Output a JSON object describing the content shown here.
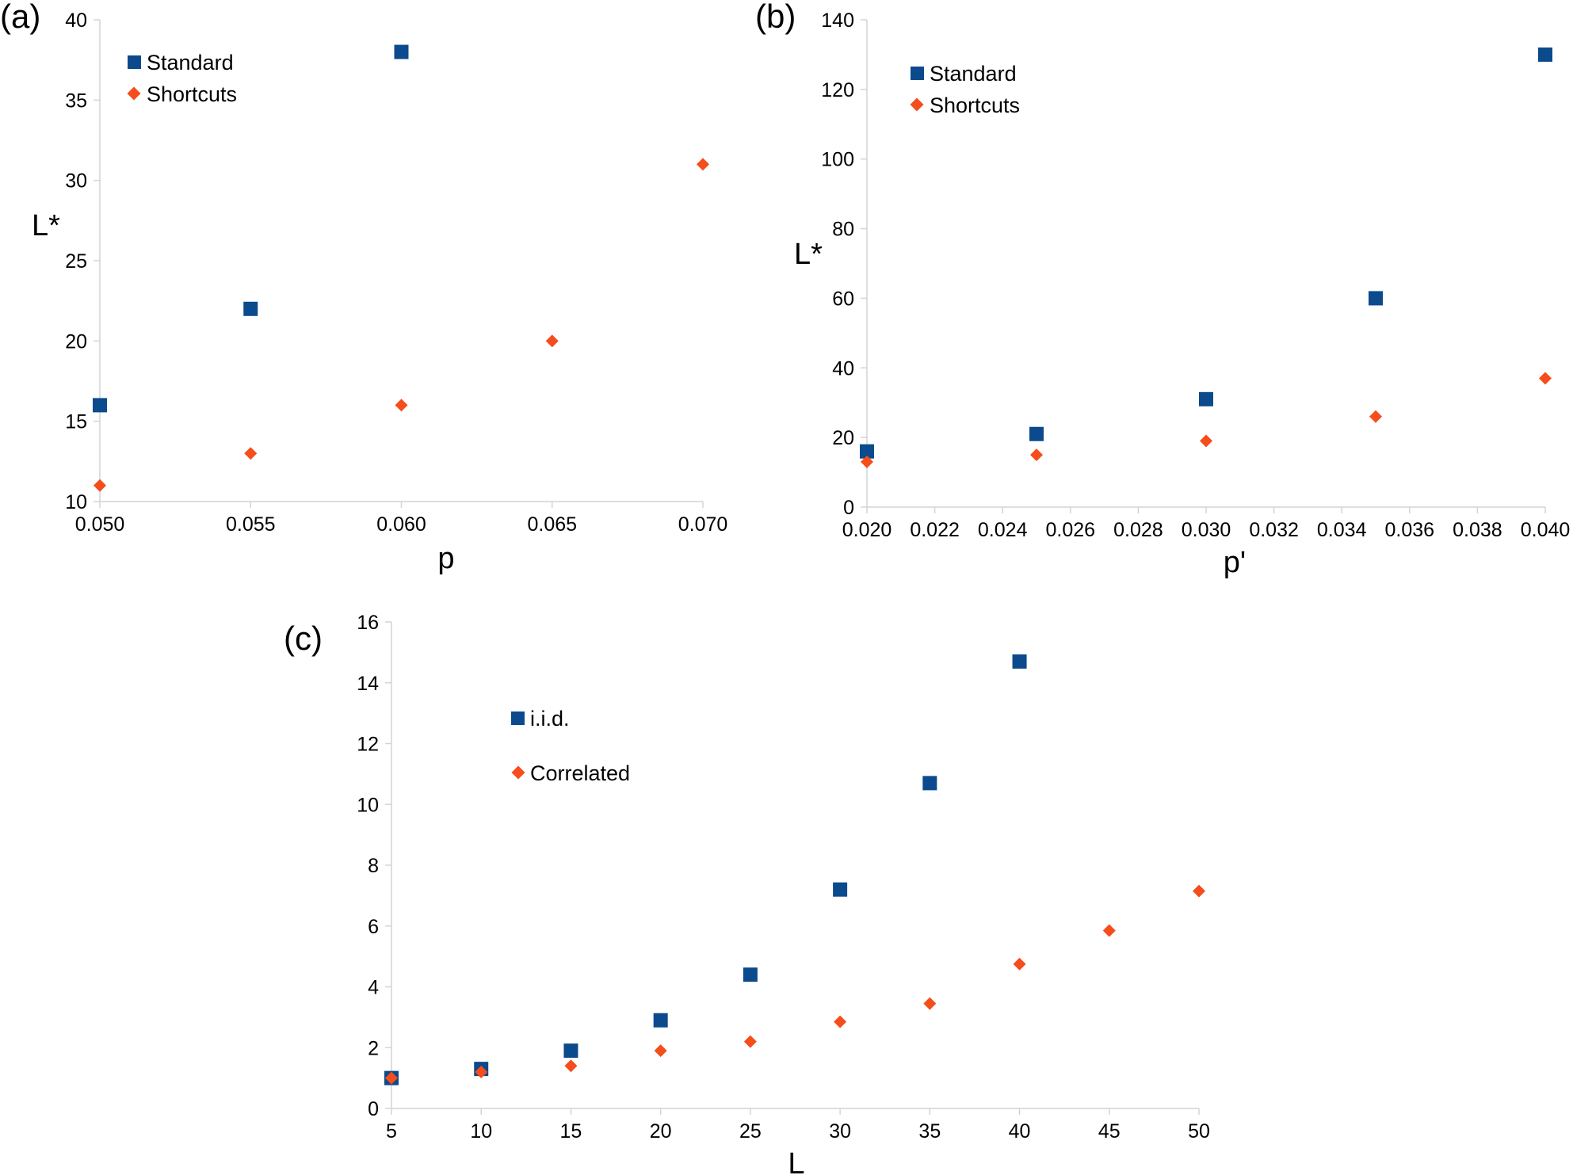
{
  "colors": {
    "standard": "#0b4a8c",
    "shortcuts": "#f54d1b",
    "axis": "#d4d4d4"
  },
  "chart_data": [
    {
      "panel_label": "(a)",
      "type": "scatter",
      "xlabel": "p",
      "ylabel": "L*",
      "xlim": [
        0.05,
        0.07
      ],
      "ylim": [
        10,
        40
      ],
      "x_ticks": [
        "0.050",
        "0.055",
        "0.060",
        "0.065",
        "0.070"
      ],
      "y_ticks": [
        "10",
        "15",
        "20",
        "25",
        "30",
        "35",
        "40"
      ],
      "legend_position": "top-left",
      "series": [
        {
          "name": "Standard",
          "marker": "square",
          "x": [
            0.05,
            0.055,
            0.06
          ],
          "y": [
            16,
            22,
            38
          ]
        },
        {
          "name": "Shortcuts",
          "marker": "diamond",
          "x": [
            0.05,
            0.055,
            0.06,
            0.065,
            0.07
          ],
          "y": [
            11,
            13,
            16,
            20,
            31
          ]
        }
      ]
    },
    {
      "panel_label": "(b)",
      "type": "scatter",
      "xlabel": "p'",
      "ylabel": "L*",
      "xlim": [
        0.02,
        0.04
      ],
      "ylim": [
        0,
        140
      ],
      "x_ticks": [
        "0.020",
        "0.022",
        "0.024",
        "0.026",
        "0.028",
        "0.030",
        "0.032",
        "0.034",
        "0.036",
        "0.038",
        "0.040"
      ],
      "y_ticks": [
        "0",
        "20",
        "40",
        "60",
        "80",
        "100",
        "120",
        "140"
      ],
      "legend_position": "top-left",
      "series": [
        {
          "name": "Standard",
          "marker": "square",
          "x": [
            0.02,
            0.025,
            0.03,
            0.035,
            0.04
          ],
          "y": [
            16,
            21,
            31,
            60,
            130
          ]
        },
        {
          "name": "Shortcuts",
          "marker": "diamond",
          "x": [
            0.02,
            0.025,
            0.03,
            0.035,
            0.04
          ],
          "y": [
            13,
            15,
            19,
            26,
            37
          ]
        }
      ]
    },
    {
      "panel_label": "(c)",
      "type": "scatter",
      "xlabel": "L",
      "ylabel": "",
      "xlim": [
        5,
        50
      ],
      "ylim": [
        0,
        16
      ],
      "x_ticks": [
        "5",
        "10",
        "15",
        "20",
        "25",
        "30",
        "35",
        "40",
        "45",
        "50"
      ],
      "y_ticks": [
        "0",
        "2",
        "4",
        "6",
        "8",
        "10",
        "12",
        "14",
        "16"
      ],
      "legend_position": "top-left",
      "series": [
        {
          "name": "i.i.d.",
          "marker": "square",
          "x": [
            5,
            10,
            15,
            20,
            25,
            30,
            35,
            40
          ],
          "y": [
            1.0,
            1.3,
            1.9,
            2.9,
            4.4,
            7.2,
            10.7,
            14.7
          ]
        },
        {
          "name": "Correlated",
          "marker": "diamond",
          "x": [
            5,
            10,
            15,
            20,
            25,
            30,
            35,
            40,
            45,
            50
          ],
          "y": [
            1.0,
            1.2,
            1.4,
            1.9,
            2.2,
            2.85,
            3.45,
            4.75,
            5.85,
            7.15
          ]
        }
      ]
    }
  ]
}
